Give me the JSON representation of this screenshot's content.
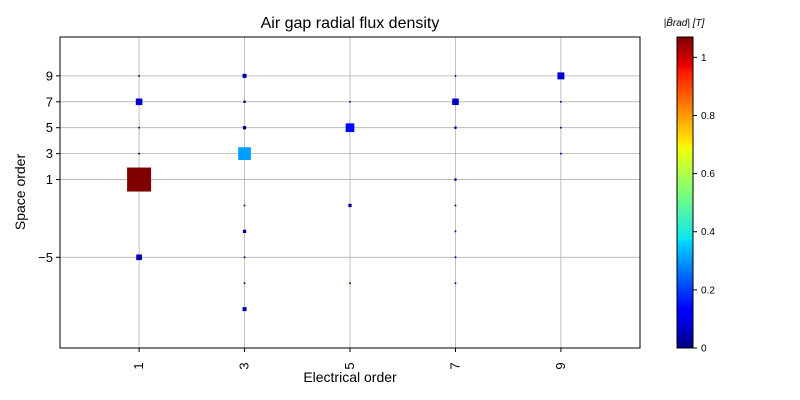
{
  "chart_data": {
    "type": "scatter",
    "title": "Air gap radial flux density",
    "xlabel": "Electrical order",
    "ylabel": "Space order",
    "x_ticks": [
      1,
      3,
      5,
      7,
      9
    ],
    "y_ticks": [
      -5,
      1,
      3,
      5,
      7,
      9
    ],
    "xlim": [
      -0.5,
      10.5
    ],
    "ylim": [
      -12,
      12
    ],
    "grid": true,
    "colorbar": {
      "label": "|B̂rad| [T]",
      "colormap": "jet",
      "range": [
        0,
        1.07
      ],
      "ticks": [
        0,
        0.2,
        0.4,
        0.6,
        0.8,
        1
      ]
    },
    "points": [
      {
        "x": 1,
        "y": 1,
        "value": 1.07
      },
      {
        "x": 1,
        "y": 7,
        "value": 0.08
      },
      {
        "x": 1,
        "y": -5,
        "value": 0.06
      },
      {
        "x": 1,
        "y": 9,
        "value": 0.005
      },
      {
        "x": 1,
        "y": 5,
        "value": 0.005
      },
      {
        "x": 1,
        "y": 3,
        "value": 0.005
      },
      {
        "x": 3,
        "y": 3,
        "value": 0.3
      },
      {
        "x": 3,
        "y": 9,
        "value": 0.03
      },
      {
        "x": 3,
        "y": 7,
        "value": 0.01
      },
      {
        "x": 3,
        "y": 5,
        "value": 0.02
      },
      {
        "x": 3,
        "y": -1,
        "value": 0.005
      },
      {
        "x": 3,
        "y": -3,
        "value": 0.02
      },
      {
        "x": 3,
        "y": -5,
        "value": 0.005
      },
      {
        "x": 3,
        "y": -7,
        "value": 0.005
      },
      {
        "x": 3,
        "y": -9,
        "value": 0.03
      },
      {
        "x": 5,
        "y": 5,
        "value": 0.14
      },
      {
        "x": 5,
        "y": 7,
        "value": 0.005
      },
      {
        "x": 5,
        "y": -1,
        "value": 0.02
      },
      {
        "x": 5,
        "y": -7,
        "value": 0.005
      },
      {
        "x": 7,
        "y": 7,
        "value": 0.08
      },
      {
        "x": 7,
        "y": 9,
        "value": 0.005
      },
      {
        "x": 7,
        "y": 5,
        "value": 0.01
      },
      {
        "x": 7,
        "y": 1,
        "value": 0.01
      },
      {
        "x": 7,
        "y": -1,
        "value": 0.005
      },
      {
        "x": 7,
        "y": -3,
        "value": 0.005
      },
      {
        "x": 7,
        "y": -5,
        "value": 0.005
      },
      {
        "x": 7,
        "y": -7,
        "value": 0.005
      },
      {
        "x": 9,
        "y": 9,
        "value": 0.09
      },
      {
        "x": 9,
        "y": 7,
        "value": 0.005
      },
      {
        "x": 9,
        "y": 5,
        "value": 0.005
      },
      {
        "x": 9,
        "y": 3,
        "value": 0.005
      }
    ]
  }
}
